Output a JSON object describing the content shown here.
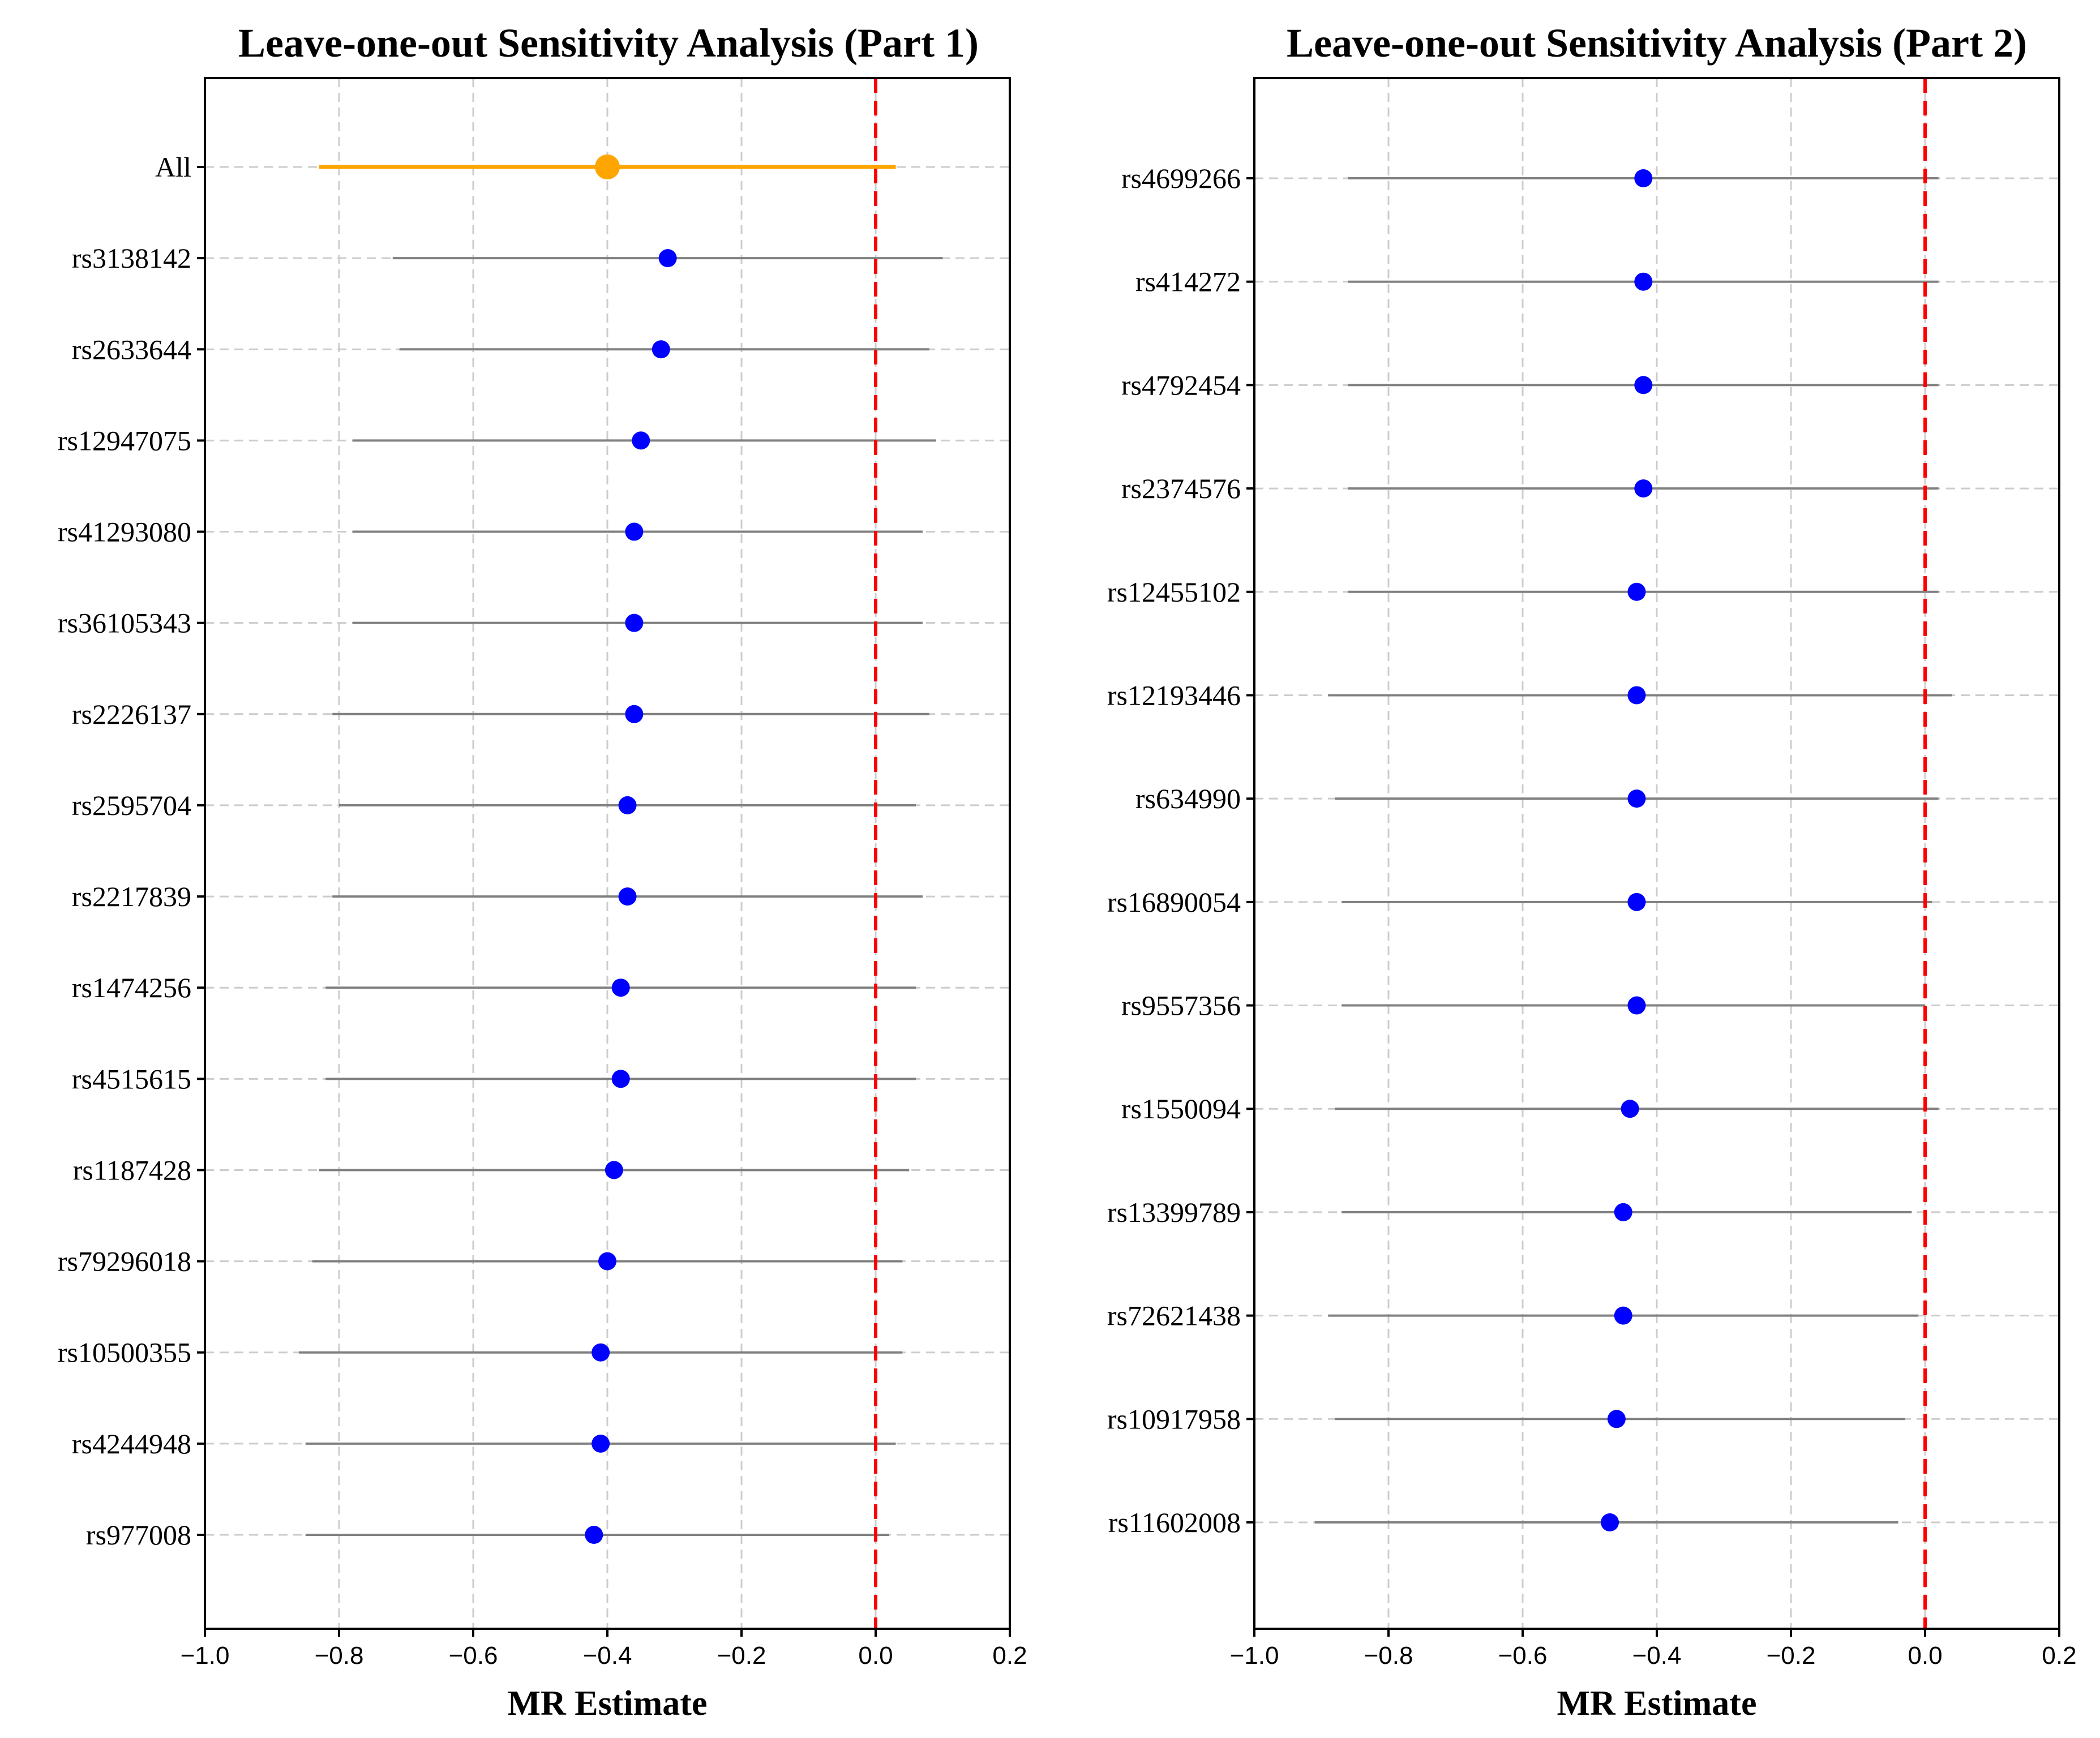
{
  "chart_data": [
    {
      "type": "forest",
      "title": "Leave-one-out Sensitivity Analysis (Part 1)",
      "xlabel": "MR Estimate",
      "ylabel": "",
      "xlim": [
        -1.0,
        0.2
      ],
      "xticks": [
        "−1.0",
        "−0.8",
        "−0.6",
        "−0.4",
        "−0.2",
        "0.0",
        "0.2"
      ],
      "xtick_values": [
        -1.0,
        -0.8,
        -0.6,
        -0.4,
        -0.2,
        0.0,
        0.2
      ],
      "reference_line": 0.0,
      "grid": true,
      "rows": [
        {
          "label": "All",
          "estimate": -0.4,
          "lower": -0.83,
          "upper": 0.03,
          "highlight": true
        },
        {
          "label": "rs3138142",
          "estimate": -0.31,
          "lower": -0.72,
          "upper": 0.1
        },
        {
          "label": "rs2633644",
          "estimate": -0.32,
          "lower": -0.71,
          "upper": 0.08
        },
        {
          "label": "rs12947075",
          "estimate": -0.35,
          "lower": -0.78,
          "upper": 0.09
        },
        {
          "label": "rs41293080",
          "estimate": -0.36,
          "lower": -0.78,
          "upper": 0.07
        },
        {
          "label": "rs36105343",
          "estimate": -0.36,
          "lower": -0.78,
          "upper": 0.07
        },
        {
          "label": "rs2226137",
          "estimate": -0.36,
          "lower": -0.81,
          "upper": 0.08
        },
        {
          "label": "rs2595704",
          "estimate": -0.37,
          "lower": -0.8,
          "upper": 0.06
        },
        {
          "label": "rs2217839",
          "estimate": -0.37,
          "lower": -0.81,
          "upper": 0.07
        },
        {
          "label": "rs1474256",
          "estimate": -0.38,
          "lower": -0.82,
          "upper": 0.06
        },
        {
          "label": "rs4515615",
          "estimate": -0.38,
          "lower": -0.82,
          "upper": 0.06
        },
        {
          "label": "rs1187428",
          "estimate": -0.39,
          "lower": -0.83,
          "upper": 0.05
        },
        {
          "label": "rs79296018",
          "estimate": -0.4,
          "lower": -0.84,
          "upper": 0.04
        },
        {
          "label": "rs10500355",
          "estimate": -0.41,
          "lower": -0.86,
          "upper": 0.04
        },
        {
          "label": "rs4244948",
          "estimate": -0.41,
          "lower": -0.85,
          "upper": 0.03
        },
        {
          "label": "rs977008",
          "estimate": -0.42,
          "lower": -0.85,
          "upper": 0.02
        }
      ]
    },
    {
      "type": "forest",
      "title": "Leave-one-out Sensitivity Analysis (Part 2)",
      "xlabel": "MR Estimate",
      "ylabel": "",
      "xlim": [
        -1.0,
        0.2
      ],
      "xticks": [
        "−1.0",
        "−0.8",
        "−0.6",
        "−0.4",
        "−0.2",
        "0.0",
        "0.2"
      ],
      "xtick_values": [
        -1.0,
        -0.8,
        -0.6,
        -0.4,
        -0.2,
        0.0,
        0.2
      ],
      "reference_line": 0.0,
      "grid": true,
      "rows": [
        {
          "label": "rs4699266",
          "estimate": -0.42,
          "lower": -0.86,
          "upper": 0.02
        },
        {
          "label": "rs414272",
          "estimate": -0.42,
          "lower": -0.86,
          "upper": 0.02
        },
        {
          "label": "rs4792454",
          "estimate": -0.42,
          "lower": -0.86,
          "upper": 0.02
        },
        {
          "label": "rs2374576",
          "estimate": -0.42,
          "lower": -0.86,
          "upper": 0.02
        },
        {
          "label": "rs12455102",
          "estimate": -0.43,
          "lower": -0.86,
          "upper": 0.02
        },
        {
          "label": "rs12193446",
          "estimate": -0.43,
          "lower": -0.89,
          "upper": 0.04
        },
        {
          "label": "rs634990",
          "estimate": -0.43,
          "lower": -0.88,
          "upper": 0.02
        },
        {
          "label": "rs16890054",
          "estimate": -0.43,
          "lower": -0.87,
          "upper": 0.01
        },
        {
          "label": "rs9557356",
          "estimate": -0.43,
          "lower": -0.87,
          "upper": 0.0
        },
        {
          "label": "rs1550094",
          "estimate": -0.44,
          "lower": -0.88,
          "upper": 0.02
        },
        {
          "label": "rs13399789",
          "estimate": -0.45,
          "lower": -0.87,
          "upper": -0.02
        },
        {
          "label": "rs72621438",
          "estimate": -0.45,
          "lower": -0.89,
          "upper": -0.01
        },
        {
          "label": "rs10917958",
          "estimate": -0.46,
          "lower": -0.88,
          "upper": -0.03
        },
        {
          "label": "rs11602008",
          "estimate": -0.47,
          "lower": -0.91,
          "upper": -0.04
        }
      ]
    }
  ],
  "colors": {
    "main_point": "#ffa500",
    "point": "#0000ff",
    "ci": "#808080",
    "reference": "#ff0000",
    "grid": "#cccccc"
  }
}
